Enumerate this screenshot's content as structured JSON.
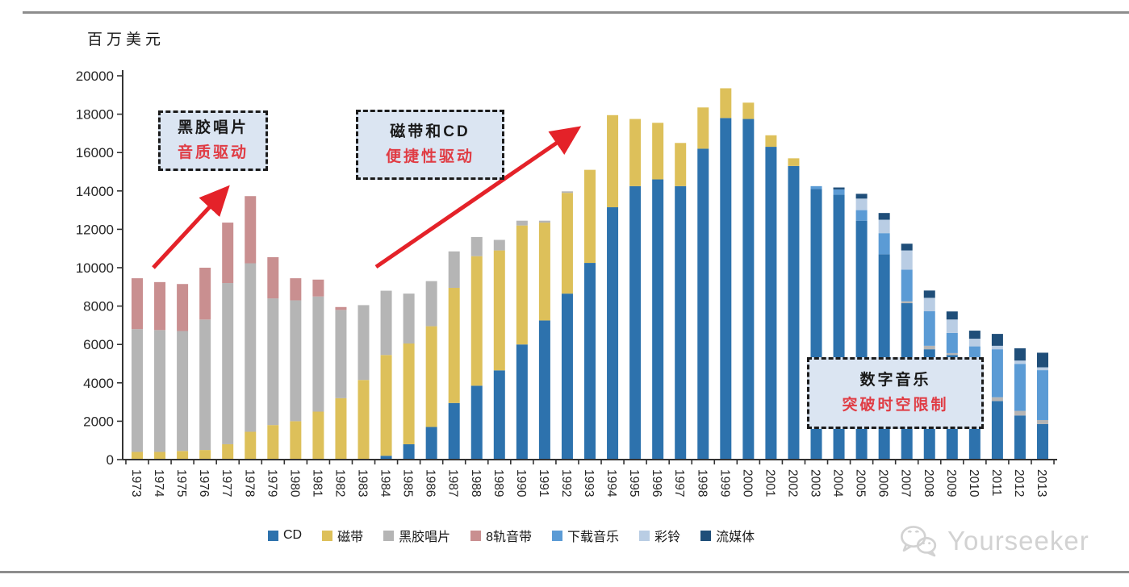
{
  "page": {
    "unit_label": "百万美元",
    "watermark": "Yourseeker"
  },
  "annotations": [
    {
      "line1": "黑胶唱片",
      "line2": "音质驱动"
    },
    {
      "line1": "磁带和CD",
      "line2": "便捷性驱动"
    },
    {
      "line1": "数字音乐",
      "line2": "突破时空限制"
    }
  ],
  "chart_data": {
    "type": "bar",
    "stacked": true,
    "ylabel": "百万美元",
    "ylim": [
      0,
      20000
    ],
    "ytick_step": 2000,
    "grid": false,
    "legend_position": "bottom",
    "categories": [
      1973,
      1974,
      1975,
      1976,
      1977,
      1978,
      1979,
      1980,
      1981,
      1982,
      1983,
      1984,
      1985,
      1986,
      1987,
      1988,
      1989,
      1990,
      1991,
      1992,
      1993,
      1994,
      1995,
      1996,
      1997,
      1998,
      1999,
      2000,
      2001,
      2002,
      2003,
      2004,
      2005,
      2006,
      2007,
      2008,
      2009,
      2010,
      2011,
      2012,
      2013
    ],
    "series": [
      {
        "name": "CD",
        "color": "#2d72ad",
        "values": [
          0,
          0,
          0,
          0,
          0,
          0,
          0,
          0,
          0,
          0,
          0,
          200,
          800,
          1700,
          2950,
          3850,
          4650,
          6000,
          7250,
          8650,
          10250,
          13150,
          14250,
          14600,
          14250,
          16200,
          17800,
          17750,
          16300,
          15300,
          14100,
          13800,
          12450,
          10700,
          8150,
          5750,
          5450,
          3300,
          3050,
          2300,
          1850
        ]
      },
      {
        "name": "磁带",
        "color": "#ddc05a",
        "values": [
          400,
          400,
          450,
          500,
          800,
          1450,
          1800,
          2000,
          2500,
          3200,
          4150,
          5250,
          5250,
          5250,
          6000,
          6750,
          6250,
          6200,
          5100,
          5250,
          4850,
          4800,
          3500,
          2950,
          2250,
          2150,
          1550,
          850,
          600,
          400,
          0,
          0,
          0,
          0,
          0,
          0,
          0,
          0,
          0,
          0,
          0
        ]
      },
      {
        "name": "黑胶唱片",
        "color": "#b5b5b5",
        "values": [
          6400,
          6350,
          6250,
          6800,
          8400,
          8780,
          6600,
          6300,
          6000,
          4600,
          3900,
          3350,
          2600,
          2350,
          1900,
          1000,
          550,
          250,
          100,
          80,
          0,
          0,
          0,
          0,
          0,
          0,
          0,
          0,
          0,
          0,
          0,
          0,
          0,
          0,
          100,
          180,
          100,
          100,
          200,
          240,
          210
        ]
      },
      {
        "name": "8轨音带",
        "color": "#c98f90",
        "values": [
          2650,
          2500,
          2450,
          2700,
          3150,
          3500,
          2150,
          1150,
          880,
          150,
          0,
          0,
          0,
          0,
          0,
          0,
          0,
          0,
          0,
          0,
          0,
          0,
          0,
          0,
          0,
          0,
          0,
          0,
          0,
          0,
          0,
          0,
          0,
          0,
          0,
          0,
          0,
          0,
          0,
          0,
          0
        ]
      },
      {
        "name": "下载音乐",
        "color": "#5b9bd5",
        "values": [
          0,
          0,
          0,
          0,
          0,
          0,
          0,
          0,
          0,
          0,
          0,
          0,
          0,
          0,
          0,
          0,
          0,
          0,
          0,
          0,
          0,
          0,
          0,
          0,
          0,
          0,
          0,
          0,
          0,
          0,
          150,
          280,
          550,
          1100,
          1650,
          1800,
          1050,
          2500,
          2500,
          2450,
          2600
        ]
      },
      {
        "name": "彩铃",
        "color": "#b9cde4",
        "values": [
          0,
          0,
          0,
          0,
          0,
          0,
          0,
          0,
          0,
          0,
          0,
          0,
          0,
          0,
          0,
          0,
          0,
          0,
          0,
          0,
          0,
          0,
          0,
          0,
          0,
          0,
          0,
          0,
          0,
          0,
          0,
          0,
          600,
          700,
          1000,
          700,
          700,
          400,
          180,
          170,
          150
        ]
      },
      {
        "name": "流媒体",
        "color": "#1f4e79",
        "values": [
          0,
          0,
          0,
          0,
          0,
          0,
          0,
          0,
          0,
          0,
          0,
          0,
          0,
          0,
          0,
          0,
          0,
          0,
          0,
          0,
          0,
          0,
          0,
          0,
          0,
          0,
          0,
          0,
          0,
          0,
          0,
          100,
          250,
          350,
          350,
          380,
          420,
          420,
          620,
          640,
          760
        ]
      }
    ]
  },
  "colors": {
    "arrow": "#e42229",
    "annotation_bg": "#dbe5f2",
    "annotation_red": "#e03c44",
    "axis": "#333333",
    "divider": "#8d8d8d",
    "watermark": "#d2d2d2"
  }
}
